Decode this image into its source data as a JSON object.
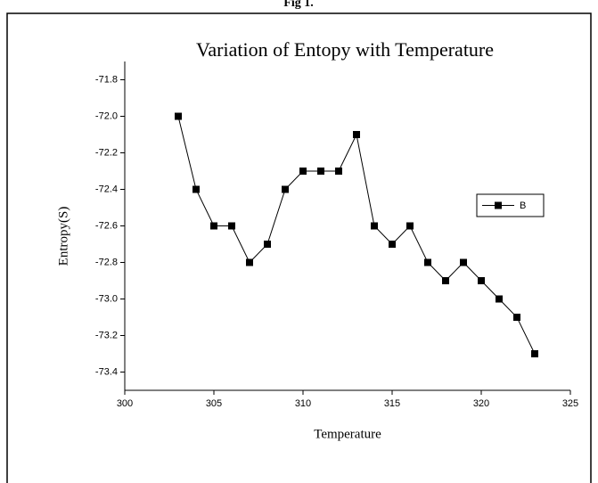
{
  "chart_data": {
    "type": "line",
    "figure_label": "Fig 1.",
    "title": "Variation of Entopy with Temperature",
    "x_label": "Temperature",
    "y_label": "Entropy(S)",
    "x": [
      303,
      304,
      305,
      306,
      307,
      308,
      309,
      310,
      311,
      312,
      313,
      314,
      315,
      316,
      317,
      318,
      319,
      320,
      321,
      322,
      323
    ],
    "series": [
      {
        "name": "B",
        "color": "#000000",
        "marker": "square",
        "values": [
          -72.0,
          -72.4,
          -72.6,
          -72.6,
          -72.8,
          -72.7,
          -72.4,
          -72.3,
          -72.3,
          -72.3,
          -72.1,
          -72.6,
          -72.7,
          -72.6,
          -72.8,
          -72.9,
          -72.8,
          -72.9,
          -73.0,
          -73.1,
          -73.3
        ]
      }
    ],
    "xlim": [
      300,
      325
    ],
    "xticks": [
      300,
      305,
      310,
      315,
      320,
      325
    ],
    "ylim": [
      -73.5,
      -71.7
    ],
    "yticks": [
      {
        "value": -73.4,
        "label": "-73.4"
      },
      {
        "value": -73.2,
        "label": "-73.2"
      },
      {
        "value": -73.0,
        "label": "-73.0"
      },
      {
        "value": -72.8,
        "label": "-72.8"
      },
      {
        "value": -72.6,
        "label": "-72.6"
      },
      {
        "value": -72.4,
        "label": "-72.4"
      },
      {
        "value": -72.2,
        "label": "-72.2"
      },
      {
        "value": -72.0,
        "label": "-72.0"
      },
      {
        "value": -71.8,
        "label": "-71.8"
      }
    ],
    "legend": "right",
    "grid": false
  }
}
